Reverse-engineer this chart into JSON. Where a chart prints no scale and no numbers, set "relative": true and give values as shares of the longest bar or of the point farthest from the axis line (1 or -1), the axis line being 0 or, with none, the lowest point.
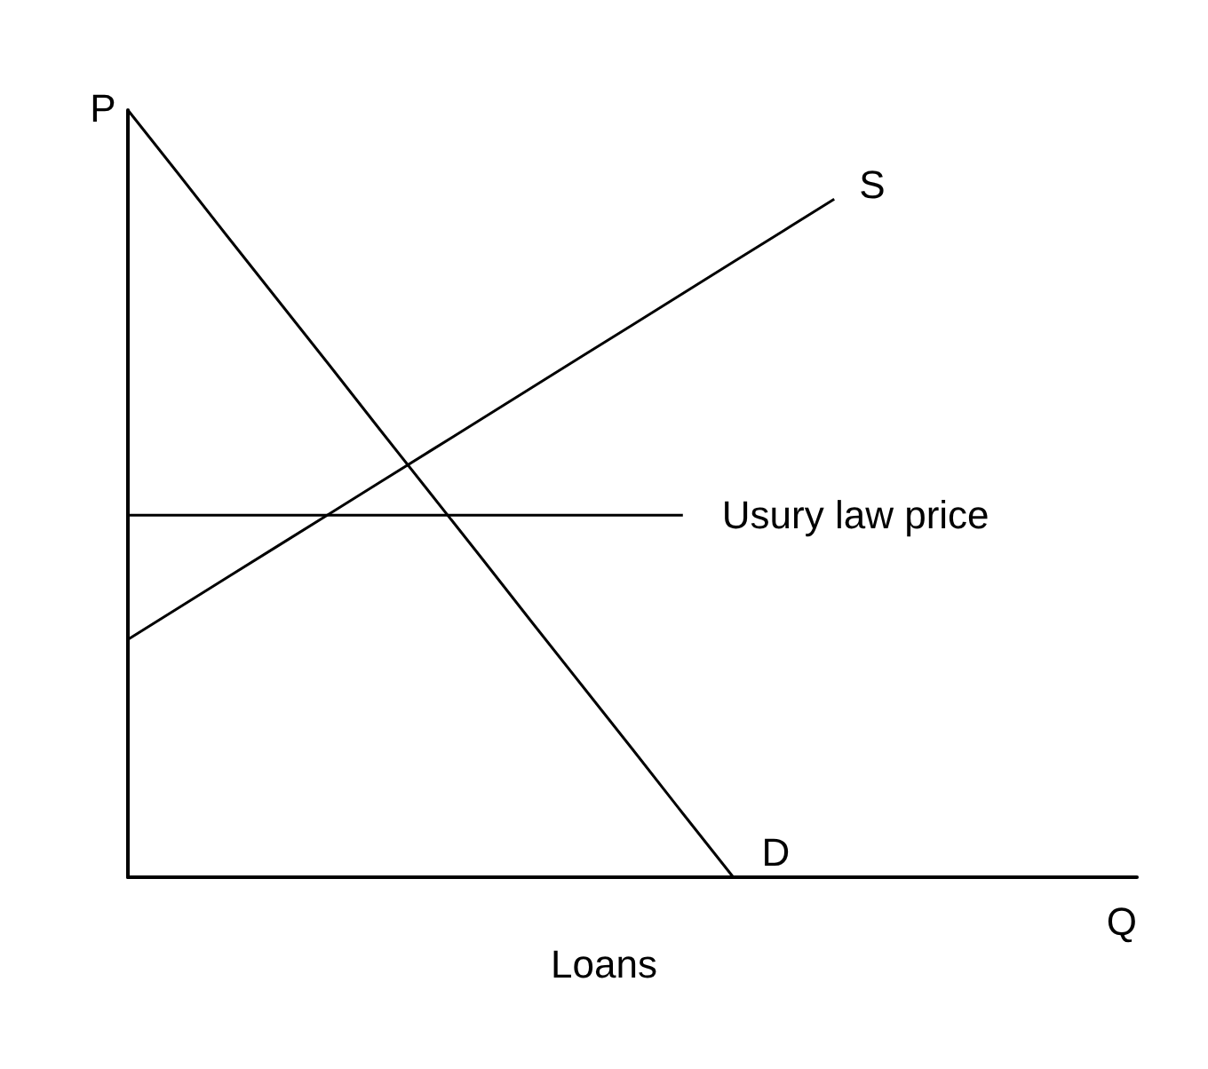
{
  "chart_data": {
    "type": "line",
    "relative": true,
    "xlabel": "Q",
    "ylabel": "P",
    "annotations": [
      "Loans"
    ],
    "tick_labels": false,
    "grid": false,
    "legend": false,
    "marker": "none",
    "line_style": "solid",
    "categories": [
      null,
      null,
      null,
      null,
      null,
      null,
      null,
      null,
      null,
      null,
      null,
      null,
      null,
      null,
      null,
      null,
      null,
      null,
      null,
      null,
      null
    ],
    "series": [
      {
        "name": "D",
        "color": "#000000",
        "values": [
          1,
          0.917,
          0.833,
          0.75,
          0.667,
          0.583,
          0.5,
          0.417,
          0.333,
          0.25,
          0.167,
          0.083,
          0,
          null,
          null,
          null,
          null,
          null,
          null,
          null,
          null
        ]
      },
      {
        "name": "S",
        "color": "#000000",
        "values": [
          0.31,
          0.351,
          0.392,
          0.433,
          0.474,
          0.515,
          0.556,
          0.597,
          0.638,
          0.679,
          0.72,
          0.761,
          0.802,
          0.843,
          0.884,
          null,
          null,
          null,
          null,
          null,
          null
        ]
      },
      {
        "name": "Usury law price",
        "color": "#000000",
        "values": [
          0.472,
          0.472,
          0.472,
          0.472,
          0.472,
          0.472,
          0.472,
          0.472,
          0.472,
          0.472,
          0.472,
          0.472,
          null,
          null,
          null,
          null,
          null,
          null,
          null,
          null,
          null
        ]
      }
    ]
  }
}
